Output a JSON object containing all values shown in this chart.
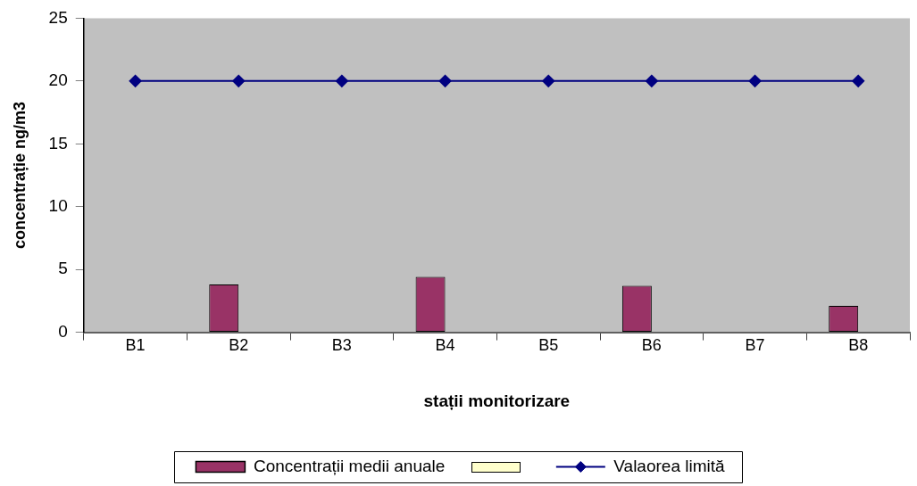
{
  "chart_data": {
    "type": "bar",
    "xlabel": "stații monitorizare",
    "ylabel": "concentrație ng/m3",
    "categories": [
      "B1",
      "B2",
      "B3",
      "B4",
      "B5",
      "B6",
      "B7",
      "B8"
    ],
    "series": [
      {
        "name": "Concentrații medii anuale",
        "color": "#993366",
        "values": [
          null,
          3.8,
          null,
          4.4,
          null,
          3.7,
          null,
          2.1
        ]
      },
      {
        "color": "#ffffcc",
        "values": [
          null,
          null,
          null,
          null,
          null,
          null,
          null,
          null
        ]
      },
      {
        "name": "Valaorea limită",
        "type": "line",
        "color": "#000080",
        "values": [
          20,
          20,
          20,
          20,
          20,
          20,
          20,
          20
        ]
      }
    ],
    "ylim": [
      0,
      25
    ],
    "yticks": [
      0,
      5,
      10,
      15,
      20,
      25
    ],
    "legend": "bottom",
    "marker": "diamond"
  }
}
